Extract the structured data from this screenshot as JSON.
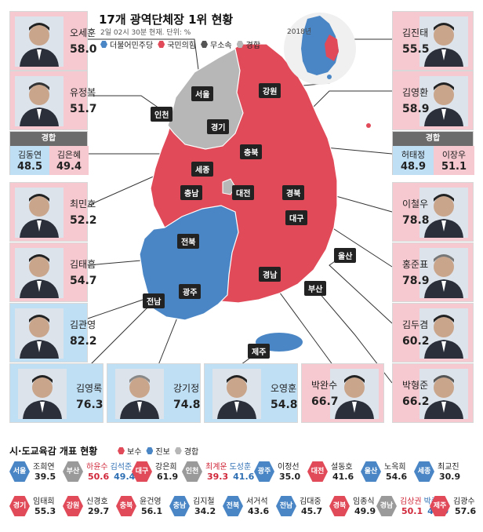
{
  "header": {
    "title": "17개 광역단체장 1위 현황",
    "subtitle": "2일 02시 30분 현재. 단위: %",
    "legend": [
      {
        "label": "더불어민주당",
        "color": "#4a86c5"
      },
      {
        "label": "국민의힘",
        "color": "#e04a59"
      },
      {
        "label": "무소속",
        "color": "#555555"
      },
      {
        "label": "경합",
        "color": "#b7b7b7"
      }
    ],
    "inset_year": "2018년"
  },
  "colors": {
    "dem": "#4a86c5",
    "ppp": "#e04a59",
    "gray": "#b7b7b7",
    "red_bg": "#f5c9cf",
    "blue_bg": "#bfdff5",
    "contest_bg": "#e3e3e3"
  },
  "cards": [
    {
      "name": "오세훈",
      "value": "58.0",
      "party": "red"
    },
    {
      "name": "유정복",
      "value": "51.7",
      "party": "red"
    },
    {
      "name": "최민호",
      "value": "52.2",
      "party": "red"
    },
    {
      "name": "김태흠",
      "value": "54.7",
      "party": "red"
    },
    {
      "name": "김관영",
      "value": "82.2",
      "party": "blue"
    },
    {
      "name": "김영록",
      "value": "76.3",
      "party": "blue"
    },
    {
      "name": "강기정",
      "value": "74.8",
      "party": "blue"
    },
    {
      "name": "오영훈",
      "value": "54.8",
      "party": "blue"
    },
    {
      "name": "박완수",
      "value": "66.7",
      "party": "red"
    },
    {
      "name": "박형준",
      "value": "66.2",
      "party": "red"
    },
    {
      "name": "김두겸",
      "value": "60.2",
      "party": "red"
    },
    {
      "name": "홍준표",
      "value": "78.9",
      "party": "red"
    },
    {
      "name": "이철우",
      "value": "78.8",
      "party": "red"
    },
    {
      "name": "김영환",
      "value": "58.9",
      "party": "red"
    },
    {
      "name": "김진태",
      "value": "55.5",
      "party": "red"
    }
  ],
  "contests": [
    {
      "label": "경합",
      "left": {
        "name": "김동연",
        "value": "48.5"
      },
      "right": {
        "name": "김은혜",
        "value": "49.4"
      }
    },
    {
      "label": "경합",
      "left": {
        "name": "허태정",
        "value": "48.9"
      },
      "right": {
        "name": "이장우",
        "value": "51.1"
      }
    }
  ],
  "regions": [
    "서울",
    "인천",
    "경기",
    "강원",
    "충북",
    "세종",
    "충남",
    "대전",
    "경북",
    "대구",
    "울산",
    "전북",
    "경남",
    "부산",
    "광주",
    "전남",
    "제주"
  ],
  "education": {
    "title": "시·도교육감 개표 현황",
    "legend": [
      {
        "label": "보수",
        "color": "#e04a59"
      },
      {
        "label": "진보",
        "color": "#4a86c5"
      },
      {
        "label": "경합",
        "color": "#b7b7b7"
      }
    ],
    "rows": [
      [
        {
          "region": "서울",
          "color": "blue",
          "names": [
            {
              "n": "조희연",
              "c": ""
            }
          ],
          "values": [
            {
              "v": "39.5",
              "c": ""
            }
          ]
        },
        {
          "region": "부산",
          "color": "gray",
          "names": [
            {
              "n": "하윤수",
              "c": "r"
            },
            {
              "n": "김석준",
              "c": "b"
            }
          ],
          "values": [
            {
              "v": "50.6",
              "c": "r"
            },
            {
              "v": "49.4",
              "c": "b"
            }
          ]
        },
        {
          "region": "대구",
          "color": "red",
          "names": [
            {
              "n": "강은희",
              "c": ""
            }
          ],
          "values": [
            {
              "v": "61.9",
              "c": ""
            }
          ]
        },
        {
          "region": "인천",
          "color": "gray",
          "names": [
            {
              "n": "최계운",
              "c": "r"
            },
            {
              "n": "도성훈",
              "c": "b"
            }
          ],
          "values": [
            {
              "v": "39.3",
              "c": "r"
            },
            {
              "v": "41.6",
              "c": "b"
            }
          ]
        },
        {
          "region": "광주",
          "color": "blue",
          "names": [
            {
              "n": "이정선",
              "c": ""
            }
          ],
          "values": [
            {
              "v": "35.0",
              "c": ""
            }
          ]
        },
        {
          "region": "대전",
          "color": "red",
          "names": [
            {
              "n": "설동호",
              "c": ""
            }
          ],
          "values": [
            {
              "v": "41.6",
              "c": ""
            }
          ]
        },
        {
          "region": "울산",
          "color": "blue",
          "names": [
            {
              "n": "노옥희",
              "c": ""
            }
          ],
          "values": [
            {
              "v": "54.6",
              "c": ""
            }
          ]
        },
        {
          "region": "세종",
          "color": "blue",
          "names": [
            {
              "n": "최교진",
              "c": ""
            }
          ],
          "values": [
            {
              "v": "30.9",
              "c": ""
            }
          ]
        }
      ],
      [
        {
          "region": "경기",
          "color": "red",
          "names": [
            {
              "n": "임태희",
              "c": ""
            }
          ],
          "values": [
            {
              "v": "55.3",
              "c": ""
            }
          ]
        },
        {
          "region": "강원",
          "color": "red",
          "names": [
            {
              "n": "신경호",
              "c": ""
            }
          ],
          "values": [
            {
              "v": "29.7",
              "c": ""
            }
          ]
        },
        {
          "region": "충북",
          "color": "red",
          "names": [
            {
              "n": "윤건영",
              "c": ""
            }
          ],
          "values": [
            {
              "v": "56.1",
              "c": ""
            }
          ]
        },
        {
          "region": "충남",
          "color": "blue",
          "names": [
            {
              "n": "김지철",
              "c": ""
            }
          ],
          "values": [
            {
              "v": "34.2",
              "c": ""
            }
          ]
        },
        {
          "region": "전북",
          "color": "blue",
          "names": [
            {
              "n": "서거석",
              "c": ""
            }
          ],
          "values": [
            {
              "v": "43.6",
              "c": ""
            }
          ]
        },
        {
          "region": "전남",
          "color": "blue",
          "names": [
            {
              "n": "김대중",
              "c": ""
            }
          ],
          "values": [
            {
              "v": "45.7",
              "c": ""
            }
          ]
        },
        {
          "region": "경북",
          "color": "red",
          "names": [
            {
              "n": "임종식",
              "c": ""
            }
          ],
          "values": [
            {
              "v": "49.9",
              "c": ""
            }
          ]
        },
        {
          "region": "경남",
          "color": "gray",
          "names": [
            {
              "n": "김상권",
              "c": "r"
            },
            {
              "n": "박종훈",
              "c": "b"
            }
          ],
          "values": [
            {
              "v": "50.1",
              "c": "r"
            },
            {
              "v": "49.9",
              "c": "b"
            }
          ]
        },
        {
          "region": "제주",
          "color": "red",
          "names": [
            {
              "n": "김광수",
              "c": ""
            }
          ],
          "values": [
            {
              "v": "57.6",
              "c": ""
            }
          ]
        }
      ]
    ]
  }
}
